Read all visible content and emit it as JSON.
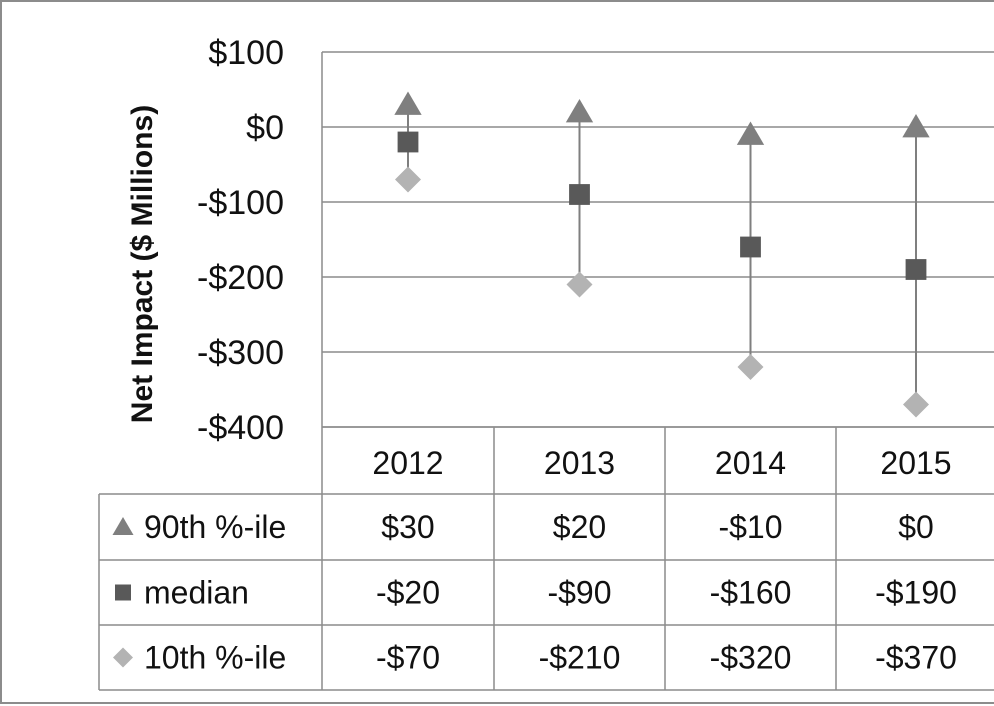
{
  "chart_data": {
    "type": "scatter",
    "ylabel": "Net Impact ($ Millions)",
    "ylim": [
      -400,
      100
    ],
    "y_ticks": [
      100,
      0,
      -100,
      -200,
      -300,
      -400
    ],
    "y_tick_labels": [
      "$100",
      "$0",
      "-$100",
      "-$200",
      "-$300",
      "-$400"
    ],
    "categories": [
      "2012",
      "2013",
      "2014",
      "2015"
    ],
    "grid": true,
    "legend": "data-table",
    "series": [
      {
        "name": "90th %-ile",
        "marker": "triangle",
        "color": "#7f7f7f",
        "values": [
          30,
          20,
          -10,
          0
        ],
        "labels": [
          "$30",
          "$20",
          "-$10",
          "$0"
        ]
      },
      {
        "name": "median",
        "marker": "square",
        "color": "#595959",
        "values": [
          -20,
          -90,
          -160,
          -190
        ],
        "labels": [
          "-$20",
          "-$90",
          "-$160",
          "-$190"
        ]
      },
      {
        "name": "10th %-ile",
        "marker": "diamond",
        "color": "#b3b3b3",
        "values": [
          -70,
          -210,
          -320,
          -370
        ],
        "labels": [
          "-$70",
          "-$210",
          "-$320",
          "-$370"
        ]
      }
    ]
  }
}
